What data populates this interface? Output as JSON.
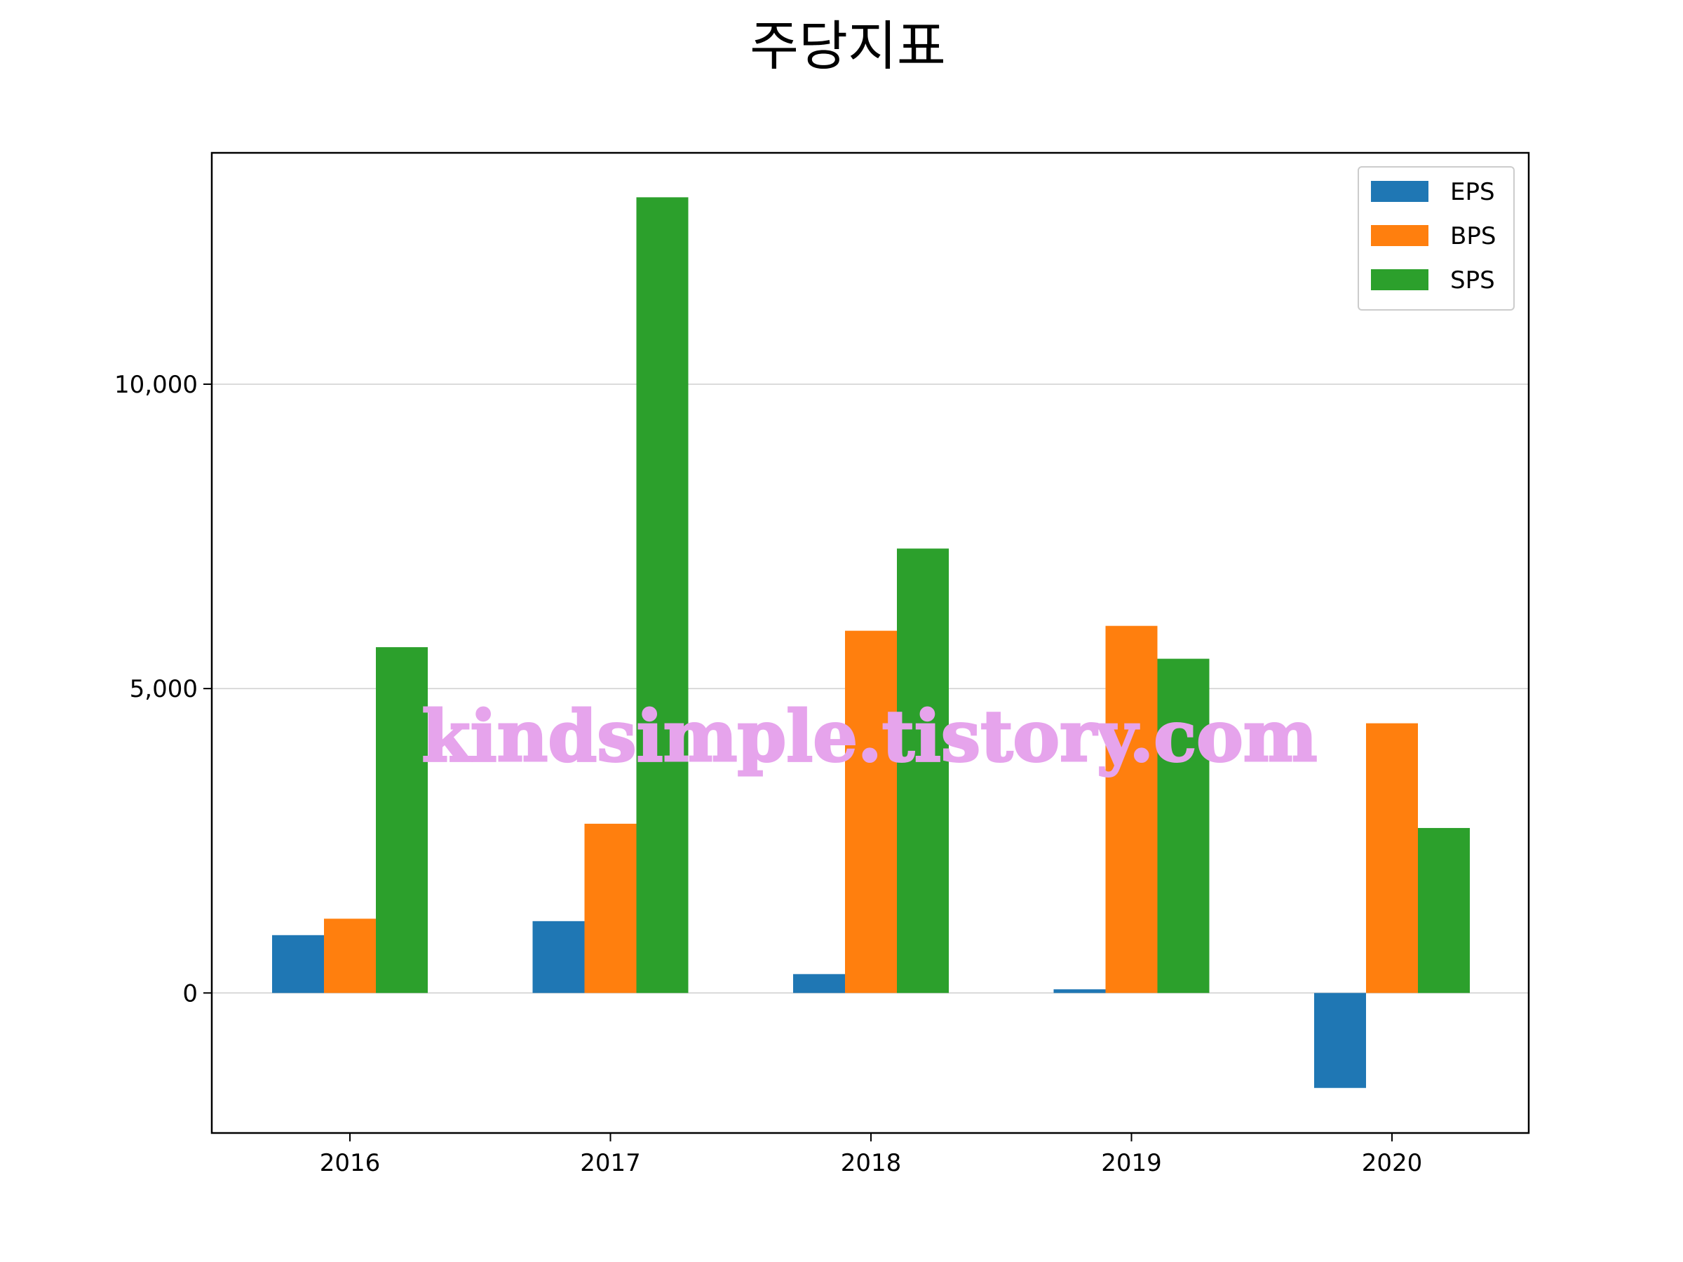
{
  "chart_data": {
    "type": "bar",
    "title": "주당지표",
    "categories": [
      "2016",
      "2017",
      "2018",
      "2019",
      "2020"
    ],
    "series": [
      {
        "name": "EPS",
        "color": "#1f77b4",
        "values": [
          950,
          1180,
          310,
          60,
          -1560
        ]
      },
      {
        "name": "BPS",
        "color": "#ff7f0e",
        "values": [
          1220,
          2780,
          5950,
          6030,
          4430
        ]
      },
      {
        "name": "SPS",
        "color": "#2ca02c",
        "values": [
          5680,
          13070,
          7300,
          5490,
          2710
        ]
      }
    ],
    "ylim": [
      -2300,
      13800
    ],
    "yticks": [
      0,
      5000,
      10000
    ],
    "ytick_labels": [
      "0",
      "5,000",
      "10,000"
    ],
    "grid": "horizontal",
    "legend_position": "top-right",
    "xlabel": "",
    "ylabel": ""
  },
  "watermark": "kindsimple.tistory.com"
}
